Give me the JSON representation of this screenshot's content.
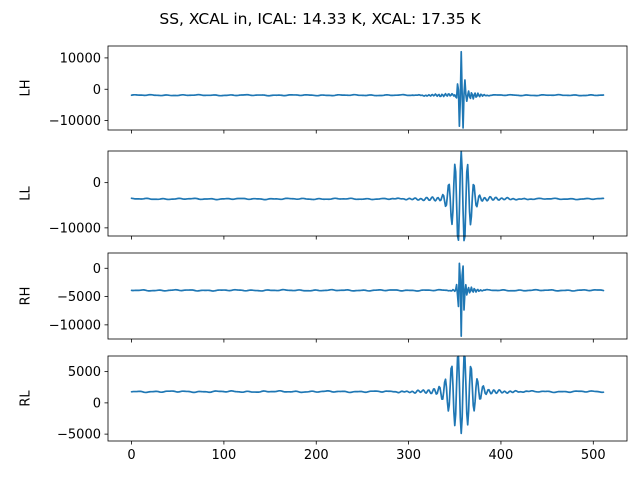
{
  "chart_data": {
    "type": "line",
    "title": "SS, XCAL in, ICAL: 14.33 K, XCAL: 17.35 K",
    "line_color": "#1f77b4",
    "grid": false,
    "sharex": true,
    "x": {
      "start": 0,
      "end": 511,
      "count": 512
    },
    "xlim": [
      -25.5,
      536.5
    ],
    "xticks": [
      0,
      100,
      200,
      300,
      400,
      500
    ],
    "xtick_labels": [
      "0",
      "100",
      "200",
      "300",
      "400",
      "500"
    ],
    "panels": [
      {
        "ylabel": "LH",
        "ylim": [
          -13000,
          13800
        ],
        "yticks": [
          -10000,
          0,
          10000
        ],
        "ytick_labels": [
          "−10000",
          "0",
          "10000"
        ],
        "baseline": -1900,
        "center": 357,
        "waveform": [
          {
            "t": 0,
            "amp": 14200,
            "freq": 0.26,
            "width": 2.6
          },
          {
            "t": 8,
            "amp": 900,
            "freq": 0.3,
            "width": 10
          },
          {
            "t": -10,
            "amp": 500,
            "freq": 0.28,
            "width": 18
          }
        ],
        "noise_amp": 160
      },
      {
        "ylabel": "LL",
        "ylim": [
          -11800,
          7000
        ],
        "yticks": [
          -10000,
          0
        ],
        "ytick_labels": [
          "−10000",
          "0"
        ],
        "baseline": -3600,
        "center": 357,
        "waveform": [
          {
            "t": 0,
            "amp": 9800,
            "freq": 0.145,
            "width": 9
          },
          {
            "t": 0,
            "amp": 700,
            "freq": 0.16,
            "width": 30
          }
        ],
        "noise_amp": 140
      },
      {
        "ylabel": "RH",
        "ylim": [
          -12500,
          2700
        ],
        "yticks": [
          -10000,
          -5000,
          0
        ],
        "ytick_labels": [
          "−10000",
          "−5000",
          "0"
        ],
        "baseline": -3900,
        "center": 357,
        "waveform": [
          {
            "t": 0,
            "amp": -7900,
            "freq": 0.3,
            "width": 2.4
          },
          {
            "t": 6,
            "amp": -600,
            "freq": 0.3,
            "width": 8
          }
        ],
        "noise_amp": 110
      },
      {
        "ylabel": "RL",
        "ylim": [
          -6100,
          7500
        ],
        "yticks": [
          -5000,
          0,
          5000
        ],
        "ytick_labels": [
          "−5000",
          "0",
          "5000"
        ],
        "baseline": 1800,
        "center": 357,
        "waveform": [
          {
            "t": 0,
            "amp": -7200,
            "freq": 0.145,
            "width": 10
          },
          {
            "t": 0,
            "amp": 600,
            "freq": 0.17,
            "width": 30
          }
        ],
        "noise_amp": 120
      }
    ]
  }
}
